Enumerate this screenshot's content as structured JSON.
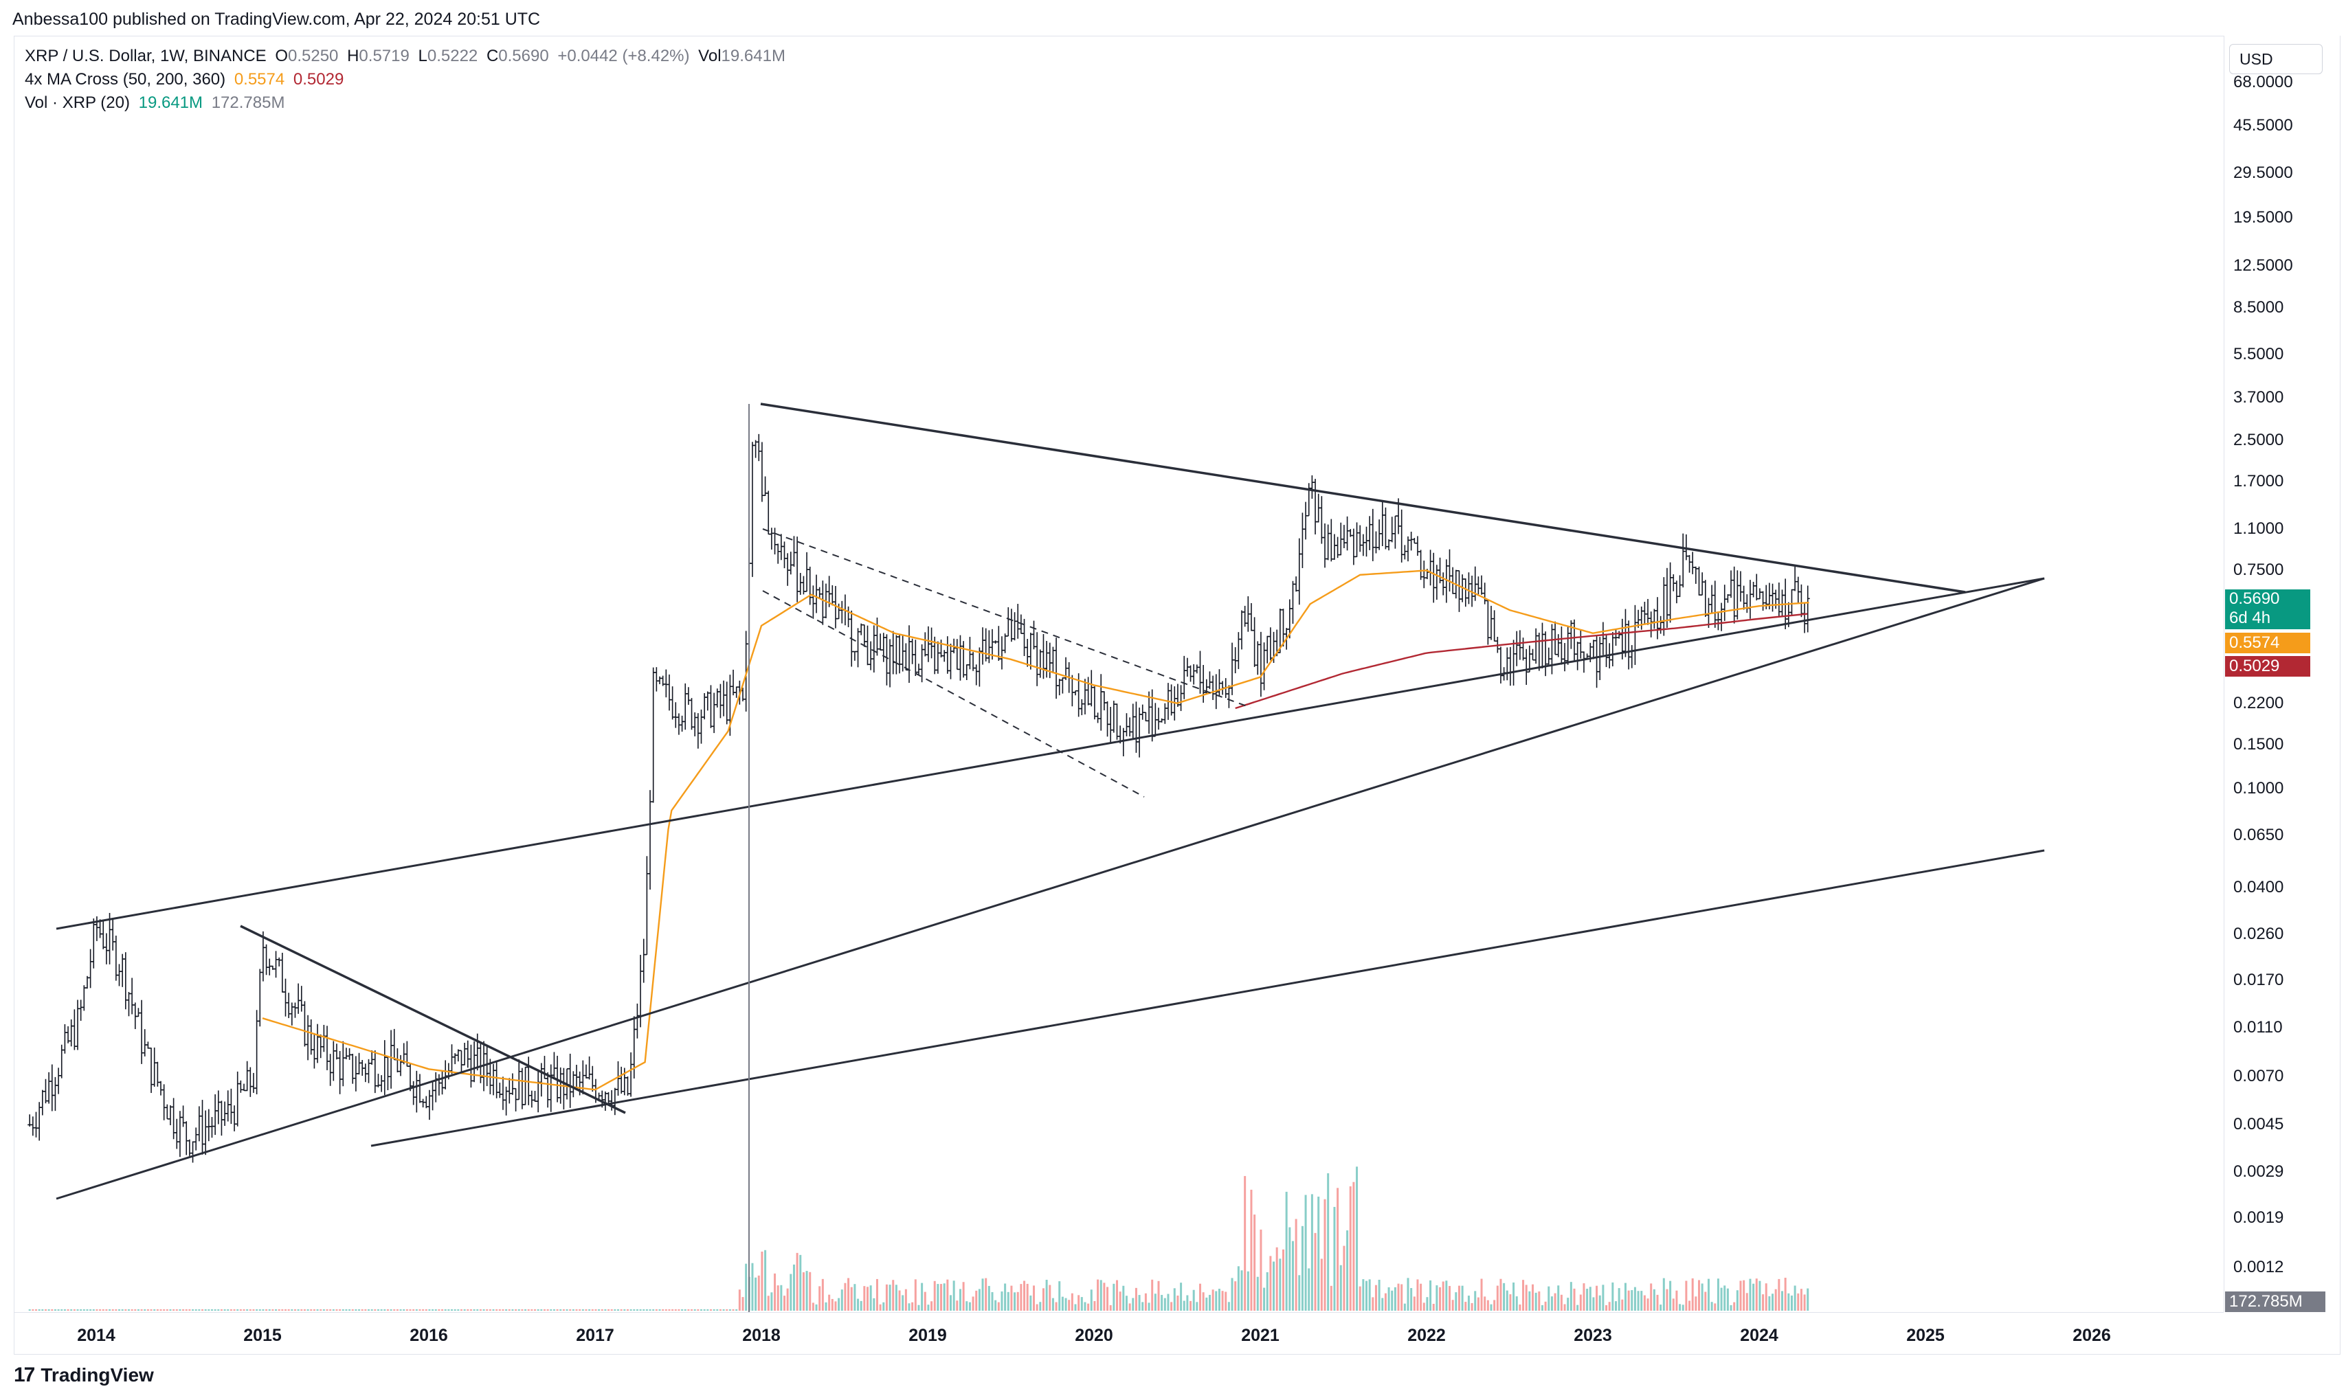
{
  "header": {
    "publisher": "Anbessa100 published on TradingView.com, Apr 22, 2024 20:51 UTC"
  },
  "legend": {
    "symbol": "XRP / U.S. Dollar, 1W, BINANCE",
    "o_label": "O",
    "o_value": "0.5250",
    "h_label": "H",
    "h_value": "0.5719",
    "l_label": "L",
    "l_value": "0.5222",
    "c_label": "C",
    "c_value": "0.5690",
    "change": "+0.0442 (+8.42%)",
    "vol_label": "Vol",
    "vol_value": "19.641M",
    "ma_label": "4x MA Cross (50, 200, 360)",
    "ma1": "0.5574",
    "ma2": "0.5029",
    "volind_label": "Vol · XRP (20)",
    "volind1": "19.641M",
    "volind2": "172.785M"
  },
  "currency": "USD",
  "badges": {
    "price": "0.5690",
    "countdown": "6d 4h",
    "ma_fast": "0.5574",
    "ma_slow": "0.5029",
    "volume": "172.785M"
  },
  "colors": {
    "price_badge": "#089981",
    "ma_fast": "#f59c1a",
    "ma_slow": "#b22833",
    "bars": "#131722",
    "vol_up": "#26a69a",
    "vol_down": "#ef5350",
    "trendline": "#2a2e39"
  },
  "footer": {
    "brand": "TradingView"
  },
  "chart_data": {
    "type": "ohlc-bar (weekly) with trendlines",
    "title": "XRP / U.S. Dollar, 1W, BINANCE",
    "y_scale": "log",
    "y_ticks": [
      "68.0000",
      "45.5000",
      "29.5000",
      "19.5000",
      "12.5000",
      "8.5000",
      "5.5000",
      "3.7000",
      "2.5000",
      "1.7000",
      "1.1000",
      "0.7500",
      "0.2200",
      "0.1500",
      "0.1000",
      "0.0650",
      "0.0400",
      "0.0260",
      "0.0170",
      "0.0110",
      "0.0070",
      "0.0045",
      "0.0029",
      "0.0019",
      "0.0012"
    ],
    "x_ticks": [
      "2014",
      "2015",
      "2016",
      "2017",
      "2018",
      "2019",
      "2020",
      "2021",
      "2022",
      "2023",
      "2024",
      "2025",
      "2026"
    ],
    "price_path": [
      [
        2013.6,
        0.0045
      ],
      [
        2013.9,
        0.012
      ],
      [
        2014.0,
        0.028
      ],
      [
        2014.15,
        0.02
      ],
      [
        2014.3,
        0.0085
      ],
      [
        2014.45,
        0.005
      ],
      [
        2014.55,
        0.004
      ],
      [
        2014.8,
        0.005
      ],
      [
        2014.95,
        0.007
      ],
      [
        2015.0,
        0.024
      ],
      [
        2015.1,
        0.018
      ],
      [
        2015.3,
        0.0095
      ],
      [
        2015.5,
        0.0075
      ],
      [
        2015.8,
        0.008
      ],
      [
        2016.0,
        0.006
      ],
      [
        2016.2,
        0.0085
      ],
      [
        2016.5,
        0.0065
      ],
      [
        2016.8,
        0.0065
      ],
      [
        2017.0,
        0.0065
      ],
      [
        2017.2,
        0.006
      ],
      [
        2017.3,
        0.025
      ],
      [
        2017.35,
        0.25
      ],
      [
        2017.6,
        0.2
      ],
      [
        2017.8,
        0.22
      ],
      [
        2017.9,
        0.25
      ],
      [
        2017.95,
        2.8
      ],
      [
        2018.05,
        1.1
      ],
      [
        2018.2,
        0.75
      ],
      [
        2018.5,
        0.45
      ],
      [
        2018.7,
        0.35
      ],
      [
        2018.9,
        0.35
      ],
      [
        2019.1,
        0.32
      ],
      [
        2019.3,
        0.35
      ],
      [
        2019.5,
        0.42
      ],
      [
        2019.8,
        0.29
      ],
      [
        2020.0,
        0.22
      ],
      [
        2020.2,
        0.18
      ],
      [
        2020.4,
        0.2
      ],
      [
        2020.6,
        0.28
      ],
      [
        2020.8,
        0.25
      ],
      [
        2020.9,
        0.55
      ],
      [
        2021.0,
        0.3
      ],
      [
        2021.2,
        0.6
      ],
      [
        2021.3,
        1.6
      ],
      [
        2021.4,
        0.9
      ],
      [
        2021.6,
        1.05
      ],
      [
        2021.8,
        1.1
      ],
      [
        2022.0,
        0.75
      ],
      [
        2022.3,
        0.62
      ],
      [
        2022.45,
        0.33
      ],
      [
        2022.7,
        0.36
      ],
      [
        2022.9,
        0.4
      ],
      [
        2023.0,
        0.35
      ],
      [
        2023.2,
        0.39
      ],
      [
        2023.4,
        0.52
      ],
      [
        2023.55,
        0.8
      ],
      [
        2023.7,
        0.52
      ],
      [
        2023.9,
        0.62
      ],
      [
        2024.1,
        0.52
      ],
      [
        2024.2,
        0.6
      ],
      [
        2024.3,
        0.5
      ]
    ],
    "ma_fast_path": [
      [
        2015.0,
        0.012
      ],
      [
        2015.5,
        0.0095
      ],
      [
        2016.0,
        0.0075
      ],
      [
        2016.5,
        0.0068
      ],
      [
        2017.0,
        0.0062
      ],
      [
        2017.3,
        0.008
      ],
      [
        2017.45,
        0.08
      ],
      [
        2017.8,
        0.17
      ],
      [
        2018.0,
        0.45
      ],
      [
        2018.3,
        0.6
      ],
      [
        2018.8,
        0.42
      ],
      [
        2019.5,
        0.33
      ],
      [
        2020.0,
        0.26
      ],
      [
        2020.5,
        0.22
      ],
      [
        2021.0,
        0.28
      ],
      [
        2021.3,
        0.55
      ],
      [
        2021.6,
        0.72
      ],
      [
        2022.0,
        0.75
      ],
      [
        2022.5,
        0.52
      ],
      [
        2023.0,
        0.42
      ],
      [
        2023.5,
        0.48
      ],
      [
        2024.0,
        0.54
      ],
      [
        2024.3,
        0.5574
      ]
    ],
    "ma_slow_path": [
      [
        2020.85,
        0.21
      ],
      [
        2021.5,
        0.29
      ],
      [
        2022.0,
        0.35
      ],
      [
        2022.5,
        0.38
      ],
      [
        2023.0,
        0.41
      ],
      [
        2023.5,
        0.44
      ],
      [
        2024.0,
        0.48
      ],
      [
        2024.3,
        0.5029
      ]
    ]
  }
}
